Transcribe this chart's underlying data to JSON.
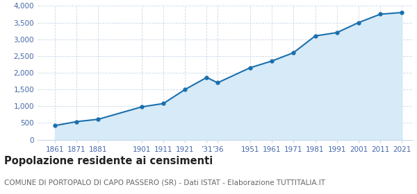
{
  "years": [
    1861,
    1871,
    1881,
    1901,
    1911,
    1921,
    1931,
    1936,
    1951,
    1961,
    1971,
    1981,
    1991,
    2001,
    2011,
    2021
  ],
  "population": [
    420,
    540,
    610,
    980,
    1080,
    1500,
    1860,
    1700,
    2150,
    2350,
    2600,
    3100,
    3200,
    3500,
    3750,
    3800
  ],
  "x_ticks": [
    1861,
    1871,
    1881,
    1901,
    1911,
    1921,
    1931,
    1936,
    1951,
    1961,
    1971,
    1981,
    1991,
    2001,
    2011,
    2021
  ],
  "x_tick_labels": [
    "1861",
    "1871",
    "1881",
    "1901",
    "1911",
    "1921",
    "’31",
    "’36",
    "1951",
    "1961",
    "1971",
    "1981",
    "1991",
    "2001",
    "2011",
    "2021"
  ],
  "ylim": [
    0,
    4000
  ],
  "yticks": [
    0,
    500,
    1000,
    1500,
    2000,
    2500,
    3000,
    3500,
    4000
  ],
  "line_color": "#1a6fad",
  "fill_color": "#d6eaf8",
  "marker_color": "#1a6fad",
  "bg_color": "#ffffff",
  "grid_color": "#c8d8e8",
  "title": "Popolazione residente ai censimenti",
  "subtitle": "COMUNE DI PORTOPALO DI CAPO PASSERO (SR) - Dati ISTAT - Elaborazione TUTTITALIA.IT",
  "title_fontsize": 10.5,
  "subtitle_fontsize": 7.5,
  "tick_color": "#4466aa",
  "tick_fontsize": 7.5,
  "ytick_fontsize": 7.5,
  "xlim_left": 1853,
  "xlim_right": 2026
}
